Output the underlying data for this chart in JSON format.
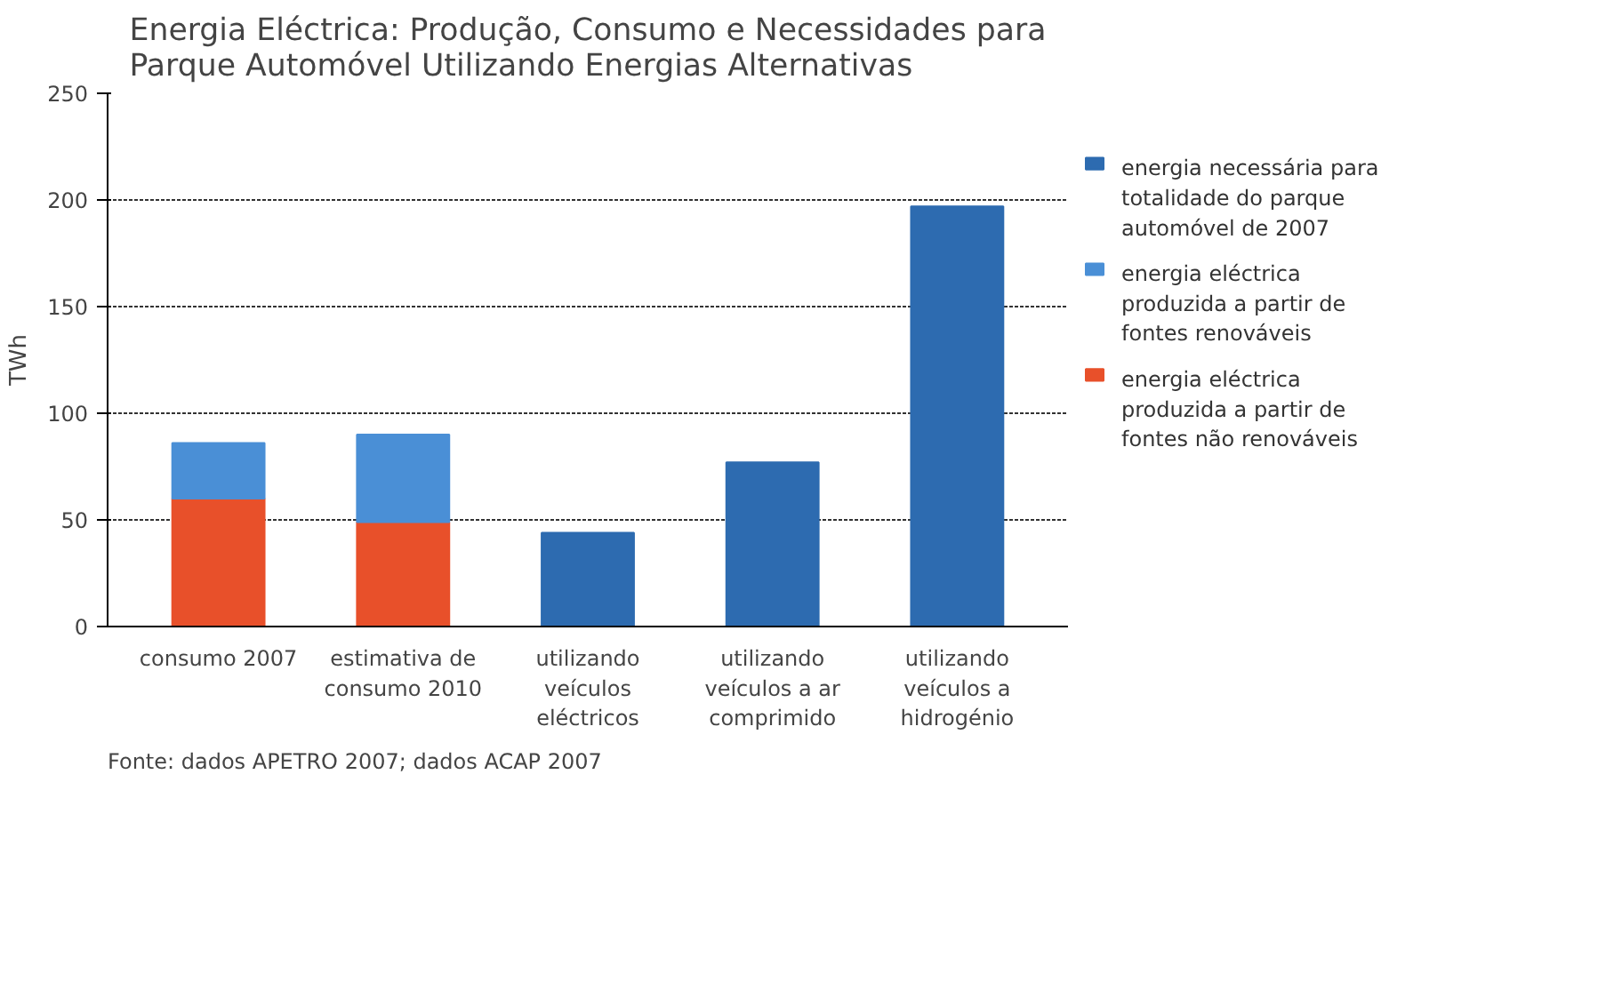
{
  "chart_data": {
    "type": "bar",
    "stacked": true,
    "title": "Energia Eléctrica: Produção, Consumo e Necessidades para Parque Automóvel Utilizando Energias Alternativas",
    "ylabel": "TWh",
    "categories": [
      "consumo 2007",
      "estimativa de consumo 2010",
      "utilizando veículos eléctricos",
      "utilizando veículos a ar comprimido",
      "utilizando veículos a hidrogénio"
    ],
    "series": [
      {
        "name": "energia eléctrica produzida a partir de fontes não renováveis",
        "color": "#e8502a",
        "values": [
          60,
          49,
          null,
          null,
          null
        ]
      },
      {
        "name": "energia eléctrica produzida a partir de fontes renováveis",
        "color": "#4a8fd6",
        "values": [
          26,
          41,
          null,
          null,
          null
        ]
      },
      {
        "name": "energia necessária para totalidade do parque automóvel de 2007",
        "color": "#2d6bb0",
        "values": [
          null,
          null,
          44,
          77,
          197
        ]
      }
    ],
    "ylim": [
      0,
      250
    ],
    "yticks": [
      0,
      50,
      100,
      150,
      200,
      250
    ],
    "grid": "y",
    "legend": "right",
    "annotations": [
      "Fonte: dados APETRO 2007; dados ACAP 2007"
    ]
  }
}
